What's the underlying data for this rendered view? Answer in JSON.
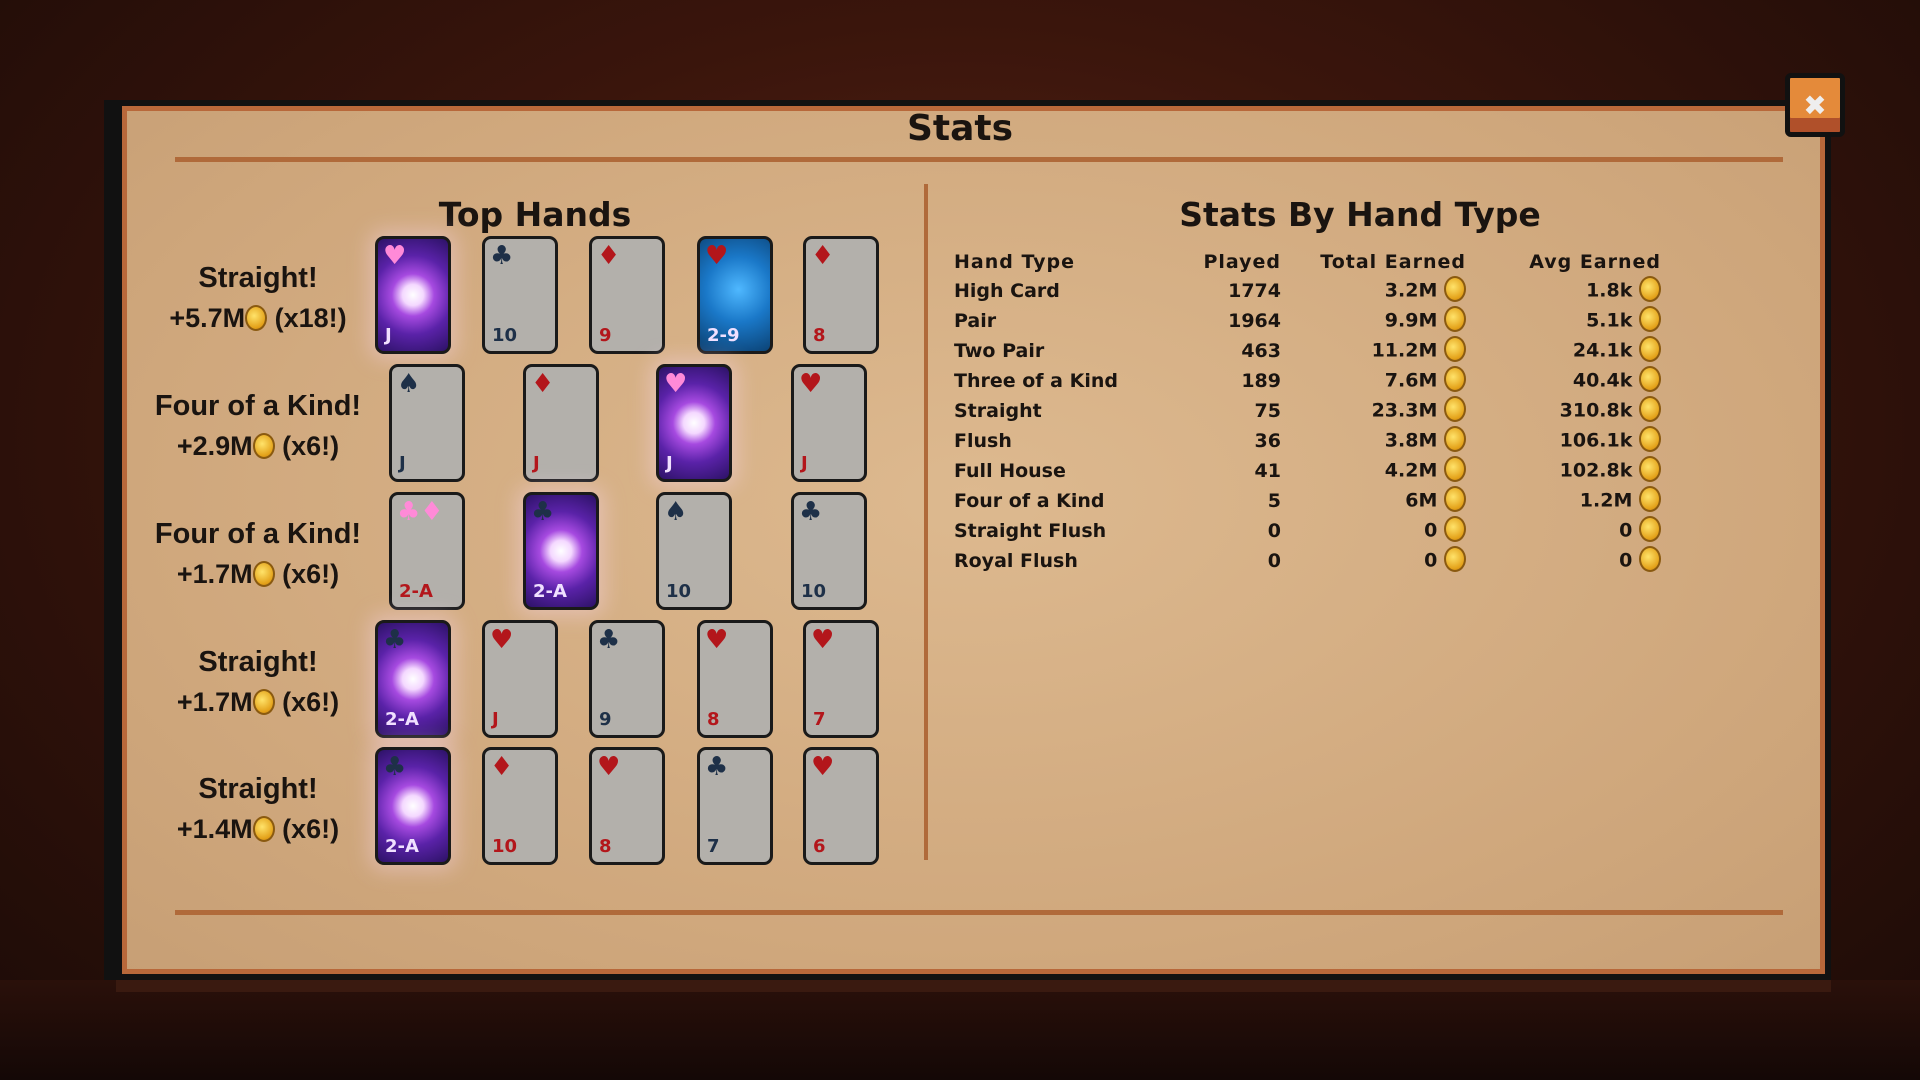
{
  "title": "Stats",
  "top_hands": {
    "title": "Top Hands",
    "hands": [
      {
        "name": "Straight!",
        "amount": "+5.7M",
        "mult": "(x18!)",
        "cards": [
          {
            "rank": "J",
            "suit": "♥",
            "color": "pink",
            "effect": "purple"
          },
          {
            "rank": "10",
            "suit": "♣",
            "color": "dark",
            "effect": "none"
          },
          {
            "rank": "9",
            "suit": "♦",
            "color": "red",
            "effect": "none"
          },
          {
            "rank": "2-9",
            "suit": "♥",
            "color": "red",
            "effect": "blue"
          },
          {
            "rank": "8",
            "suit": "♦",
            "color": "red",
            "effect": "none"
          }
        ]
      },
      {
        "name": "Four of a Kind!",
        "amount": "+2.9M",
        "mult": "(x6!)",
        "cards": [
          {
            "rank": "J",
            "suit": "♠",
            "color": "dark",
            "effect": "none"
          },
          {
            "rank": "J",
            "suit": "♦",
            "color": "red",
            "effect": "none"
          },
          {
            "rank": "J",
            "suit": "♥",
            "color": "pink",
            "effect": "purple"
          },
          {
            "rank": "J",
            "suit": "♥",
            "color": "red",
            "effect": "none"
          }
        ]
      },
      {
        "name": "Four of a Kind!",
        "amount": "+1.7M",
        "mult": "(x6!)",
        "cards": [
          {
            "rank": "2-A",
            "suit": "♣♦",
            "color": "pink",
            "effect": "none"
          },
          {
            "rank": "2-A",
            "suit": "♣",
            "color": "dark",
            "effect": "purple"
          },
          {
            "rank": "10",
            "suit": "♠",
            "color": "dark",
            "effect": "none"
          },
          {
            "rank": "10",
            "suit": "♣",
            "color": "dark",
            "effect": "none"
          }
        ]
      },
      {
        "name": "Straight!",
        "amount": "+1.7M",
        "mult": "(x6!)",
        "cards": [
          {
            "rank": "2-A",
            "suit": "♣",
            "color": "dark",
            "effect": "purple"
          },
          {
            "rank": "J",
            "suit": "♥",
            "color": "red",
            "effect": "none"
          },
          {
            "rank": "9",
            "suit": "♣",
            "color": "dark",
            "effect": "none"
          },
          {
            "rank": "8",
            "suit": "♥",
            "color": "red",
            "effect": "none"
          },
          {
            "rank": "7",
            "suit": "♥",
            "color": "red",
            "effect": "none"
          }
        ]
      },
      {
        "name": "Straight!",
        "amount": "+1.4M",
        "mult": "(x6!)",
        "cards": [
          {
            "rank": "2-A",
            "suit": "♣",
            "color": "dark",
            "effect": "purple"
          },
          {
            "rank": "10",
            "suit": "♦",
            "color": "red",
            "effect": "none"
          },
          {
            "rank": "8",
            "suit": "♥",
            "color": "red",
            "effect": "none"
          },
          {
            "rank": "7",
            "suit": "♣",
            "color": "dark",
            "effect": "none"
          },
          {
            "rank": "6",
            "suit": "♥",
            "color": "red",
            "effect": "none"
          }
        ]
      }
    ]
  },
  "hand_stats": {
    "title": "Stats By Hand Type",
    "headers": [
      "Hand Type",
      "Played",
      "Total Earned",
      "Avg Earned"
    ],
    "rows": [
      [
        "High Card",
        "1774",
        "3.2M",
        "1.8k"
      ],
      [
        "Pair",
        "1964",
        "9.9M",
        "5.1k"
      ],
      [
        "Two Pair",
        "463",
        "11.2M",
        "24.1k"
      ],
      [
        "Three of a Kind",
        "189",
        "7.6M",
        "40.4k"
      ],
      [
        "Straight",
        "75",
        "23.3M",
        "310.8k"
      ],
      [
        "Flush",
        "36",
        "3.8M",
        "106.1k"
      ],
      [
        "Full House",
        "41",
        "4.2M",
        "102.8k"
      ],
      [
        "Four of a Kind",
        "5",
        "6M",
        "1.2M"
      ],
      [
        "Straight Flush",
        "0",
        "0",
        "0"
      ],
      [
        "Royal Flush",
        "0",
        "0",
        "0"
      ]
    ]
  },
  "icons": {
    "close": "close-x-icon",
    "coin": "gold-coin-icon"
  },
  "colors": {
    "panel": "#d6b088",
    "border": "#b06a3a",
    "close_button": "#e48a3a",
    "card": "#b3b0ab",
    "red_suit": "#b3161b",
    "dark_suit": "#1e3048"
  }
}
